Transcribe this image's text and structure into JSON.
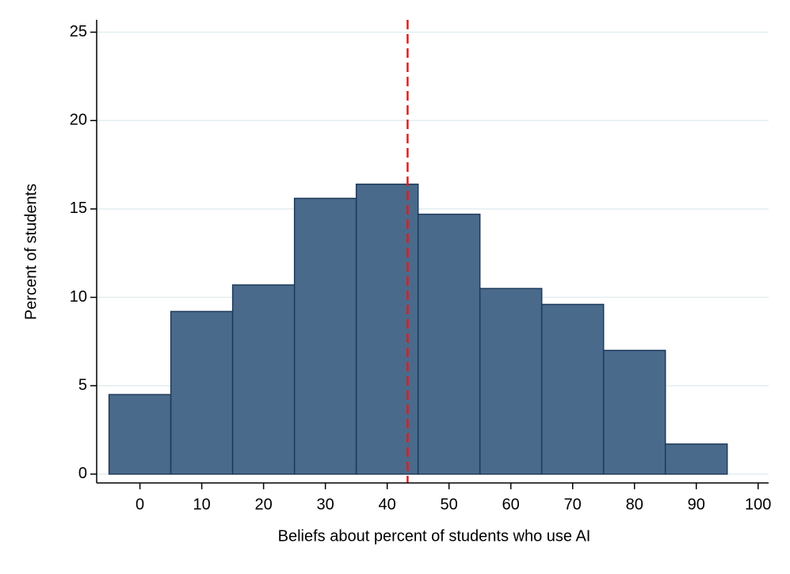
{
  "chart_data": {
    "type": "histogram",
    "bins": [
      -5,
      5,
      15,
      25,
      35,
      45,
      55,
      65,
      75,
      85,
      95
    ],
    "values": [
      4.5,
      9.2,
      10.7,
      15.6,
      16.4,
      14.7,
      10.5,
      9.6,
      7.0,
      1.7
    ],
    "color": "#4a6a8c",
    "edge_color": "#1e3a5a",
    "xlabel": "Beliefs about percent of students who use AI",
    "ylabel": "Percent of students",
    "xlim": [
      -7,
      101.7
    ],
    "ylim": [
      -0.5,
      25.7
    ],
    "xticks": [
      0,
      10,
      20,
      30,
      40,
      50,
      60,
      70,
      80,
      90,
      100
    ],
    "yticks": [
      0,
      5,
      10,
      15,
      20,
      25
    ],
    "grid": true,
    "grid_color": "#e2eef0",
    "reference_line": {
      "x": 43.3,
      "color": "#e41a1c"
    }
  }
}
